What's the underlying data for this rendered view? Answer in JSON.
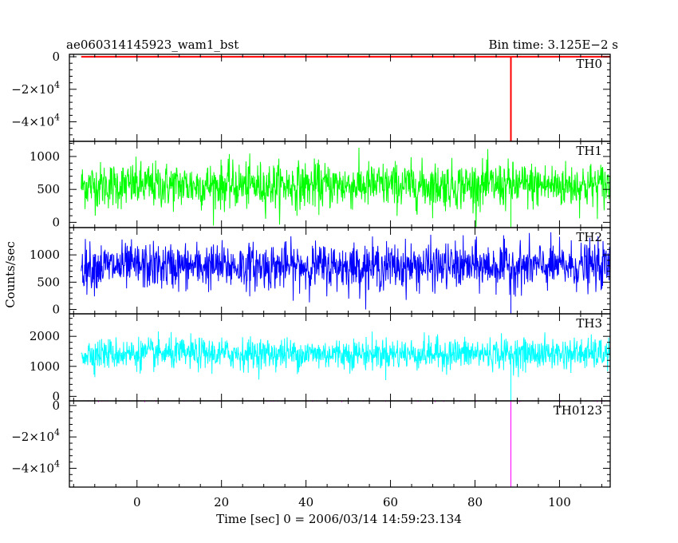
{
  "header": {
    "title": "ae060314145923_wam1_bst",
    "bin_time": "Bin time: 3.125E−2 s"
  },
  "axes": {
    "ylabel": "Counts/sec",
    "xlabel": "Time [sec] 0 = 2006/03/14 14:59:23.134"
  },
  "chart_data": {
    "type": "line",
    "x_range": [
      -16,
      112
    ],
    "x_ticks": [
      0,
      20,
      40,
      60,
      80,
      100
    ],
    "x_tick_labels": [
      "0",
      "20",
      "40",
      "60",
      "80",
      "100"
    ],
    "spike_time": 88.5,
    "panels": [
      {
        "name": "TH0",
        "color": "#ff0000",
        "ylim": [
          -52000,
          1500
        ],
        "yticks": [
          0,
          -20000,
          -40000
        ],
        "ytick_labels": [
          {
            "base": "0",
            "exp": ""
          },
          {
            "base": "−2×10",
            "exp": "4"
          },
          {
            "base": "−4×10",
            "exp": "4"
          }
        ],
        "baseline_mean": 0,
        "noise_sd": 0,
        "spike_value": -52000,
        "kind": "flat"
      },
      {
        "name": "TH1",
        "color": "#00ff00",
        "ylim": [
          -80,
          1230
        ],
        "yticks": [
          0,
          500,
          1000
        ],
        "ytick_labels": [
          {
            "base": "0",
            "exp": ""
          },
          {
            "base": "500",
            "exp": ""
          },
          {
            "base": "1000",
            "exp": ""
          }
        ],
        "baseline_mean": 560,
        "noise_sd": 175,
        "spike_value": -80,
        "kind": "noise"
      },
      {
        "name": "TH2",
        "color": "#0000ff",
        "ylim": [
          -80,
          1500
        ],
        "yticks": [
          0,
          500,
          1000
        ],
        "ytick_labels": [
          {
            "base": "0",
            "exp": ""
          },
          {
            "base": "500",
            "exp": ""
          },
          {
            "base": "1000",
            "exp": ""
          }
        ],
        "baseline_mean": 790,
        "noise_sd": 210,
        "spike_value": -80,
        "kind": "noise"
      },
      {
        "name": "TH3",
        "color": "#00ffff",
        "ylim": [
          -150,
          2750
        ],
        "yticks": [
          0,
          1000,
          2000
        ],
        "ytick_labels": [
          {
            "base": "0",
            "exp": ""
          },
          {
            "base": "1000",
            "exp": ""
          },
          {
            "base": "2000",
            "exp": ""
          }
        ],
        "baseline_mean": 1420,
        "noise_sd": 260,
        "spike_value": -150,
        "kind": "noise"
      },
      {
        "name": "TH0123",
        "color": "#ff00ff",
        "ylim": [
          -52000,
          3000
        ],
        "yticks": [
          0,
          -20000,
          -40000
        ],
        "ytick_labels": [
          {
            "base": "0",
            "exp": ""
          },
          {
            "base": "−2×10",
            "exp": "4"
          },
          {
            "base": "−4×10",
            "exp": "4"
          }
        ],
        "baseline_mean": 3400,
        "noise_sd": 250,
        "spike_value": -52000,
        "kind": "noise"
      }
    ]
  }
}
